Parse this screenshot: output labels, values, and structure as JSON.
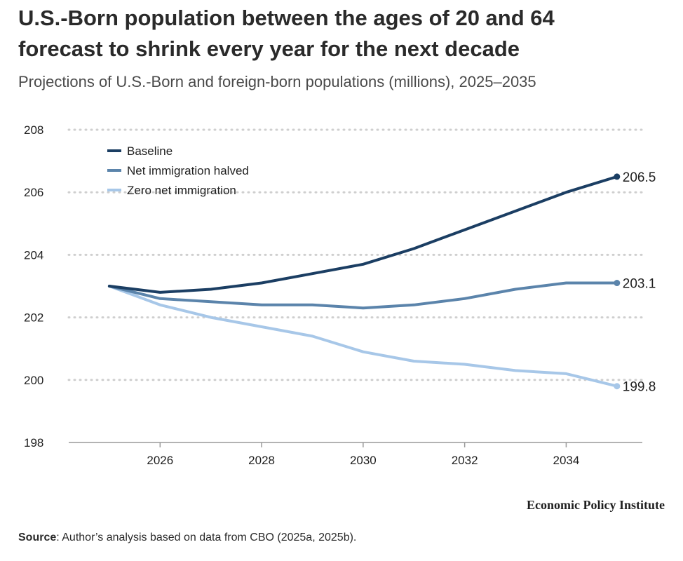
{
  "header": {
    "title_line1": "U.S.-Born population between the ages of 20 and 64",
    "title_line2": "forecast to shrink every year for the next decade",
    "subtitle": "Projections of U.S.-Born and foreign-born populations (millions), 2025–2035"
  },
  "chart_data": {
    "type": "line",
    "x": [
      2025,
      2026,
      2027,
      2028,
      2029,
      2030,
      2031,
      2032,
      2033,
      2034,
      2035
    ],
    "xlim": [
      2024.2,
      2035.5
    ],
    "ylim": [
      198,
      208
    ],
    "xticks": [
      "2026",
      "2028",
      "2030",
      "2032",
      "2034"
    ],
    "yticks": [
      "198",
      "200",
      "202",
      "204",
      "206",
      "208"
    ],
    "grid": "horizontal dotted",
    "legend_placement": "top-left",
    "series": [
      {
        "name": "Baseline",
        "color": "#1b3e63",
        "values": [
          203.0,
          202.8,
          202.9,
          203.1,
          203.4,
          203.7,
          204.2,
          204.8,
          205.4,
          206.0,
          206.5
        ],
        "end_label": "206.5"
      },
      {
        "name": "Net immigration halved",
        "color": "#5b84ab",
        "values": [
          203.0,
          202.6,
          202.5,
          202.4,
          202.4,
          202.3,
          202.4,
          202.6,
          202.9,
          203.1,
          203.1
        ],
        "end_label": "203.1"
      },
      {
        "name": "Zero net immigration",
        "color": "#a7c7e8",
        "values": [
          203.0,
          202.4,
          202.0,
          201.7,
          201.4,
          200.9,
          200.6,
          200.5,
          200.3,
          200.2,
          199.8
        ],
        "end_label": "199.8"
      }
    ]
  },
  "footer": {
    "brand": "Economic Policy Institute",
    "source_label": "Source",
    "source_text": ": Author’s analysis based on data from CBO (2025a, 2025b)."
  }
}
